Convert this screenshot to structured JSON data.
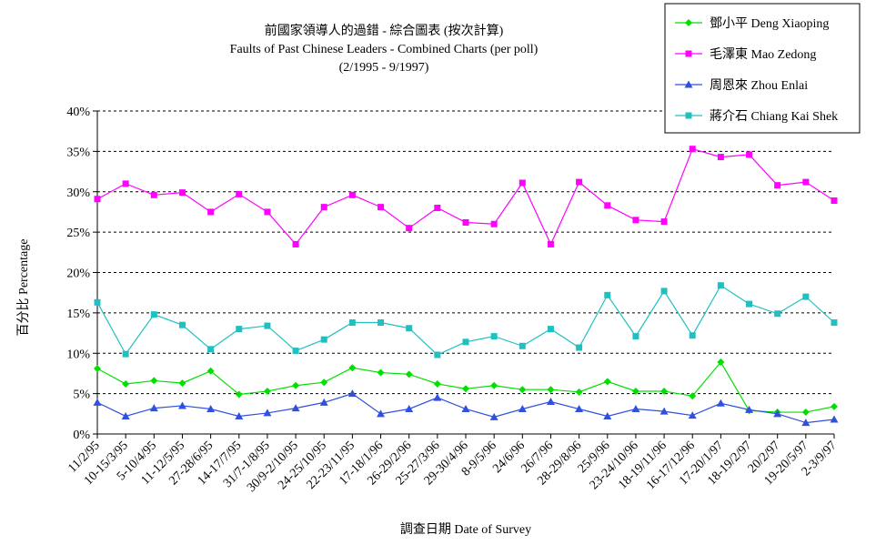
{
  "chart_data": {
    "type": "line",
    "title": "前國家領導人的過錯 - 綜合圖表 (按次計算)",
    "subtitle": "Faults of Past Chinese Leaders - Combined Charts (per poll)",
    "subtitle2": "(2/1995 - 9/1997)",
    "xlabel": "調查日期 Date of Survey",
    "ylabel": "百分比 Percentage",
    "ylim": [
      0,
      40
    ],
    "yticks": [
      "0%",
      "5%",
      "10%",
      "15%",
      "20%",
      "25%",
      "30%",
      "35%",
      "40%"
    ],
    "legend_position": "top-right",
    "grid": "horizontal-dashed",
    "categories": [
      "11/2/95",
      "10-15/3/95",
      "5-10/4/95",
      "11-12/5/95",
      "27-28/6/95",
      "14-17/7/95",
      "31/7-1/8/95",
      "30/9-2/10/95",
      "24-25/10/95",
      "22-23/11/95",
      "17-18/1/96",
      "26-29/2/96",
      "25-27/3/96",
      "29-30/4/96",
      "8-9/5/96",
      "24/6/96",
      "26/7/96",
      "28-29/8/96",
      "25/9/96",
      "23-24/10/96",
      "18-19/11/96",
      "16-17/12/96",
      "17-20/1/97",
      "18-19/2/97",
      "20/2/97",
      "19-20/5/97",
      "2-3/9/97"
    ],
    "series": [
      {
        "name": "鄧小平 Deng Xiaoping",
        "color": "#00e000",
        "marker": "diamond",
        "values": [
          8.1,
          6.2,
          6.6,
          6.3,
          7.8,
          4.9,
          5.3,
          6.0,
          6.4,
          8.2,
          7.6,
          7.4,
          6.2,
          5.6,
          6.0,
          5.5,
          5.5,
          5.2,
          6.5,
          5.3,
          5.3,
          4.7,
          8.9,
          2.9,
          2.7,
          2.7,
          3.4
        ]
      },
      {
        "name": "毛澤東 Mao Zedong",
        "color": "#ff00ff",
        "marker": "square",
        "values": [
          29.1,
          31.0,
          29.6,
          29.9,
          27.5,
          29.7,
          27.5,
          23.5,
          28.1,
          29.6,
          28.1,
          25.5,
          28.0,
          26.2,
          26.0,
          31.1,
          23.5,
          31.2,
          28.3,
          26.5,
          26.3,
          35.3,
          34.3,
          34.6,
          30.8,
          31.2,
          28.9
        ]
      },
      {
        "name": "周恩來 Zhou Enlai",
        "color": "#3050e0",
        "marker": "triangle",
        "values": [
          3.9,
          2.2,
          3.2,
          3.5,
          3.1,
          2.2,
          2.6,
          3.2,
          3.9,
          5.0,
          2.5,
          3.1,
          4.5,
          3.1,
          2.1,
          3.1,
          4.0,
          3.1,
          2.2,
          3.1,
          2.8,
          2.3,
          3.8,
          3.0,
          2.5,
          1.4,
          1.8
        ]
      },
      {
        "name": "蔣介石 Chiang Kai Shek",
        "color": "#20c0c0",
        "marker": "square",
        "values": [
          16.3,
          9.9,
          14.8,
          13.5,
          10.5,
          13.0,
          13.4,
          10.3,
          11.7,
          13.8,
          13.8,
          13.1,
          9.8,
          11.4,
          12.1,
          10.9,
          13.0,
          10.7,
          17.2,
          12.1,
          17.7,
          12.2,
          18.4,
          16.1,
          14.9,
          17.0,
          13.8
        ]
      }
    ]
  }
}
